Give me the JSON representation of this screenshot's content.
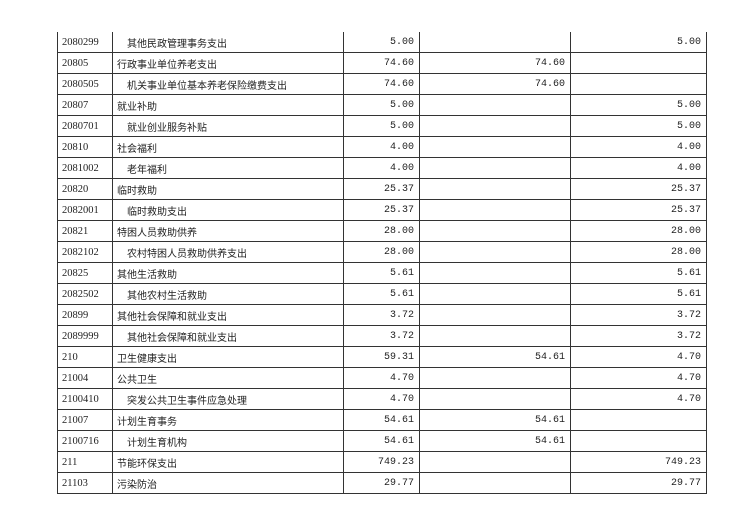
{
  "rows": [
    {
      "code": "2080299",
      "name": "其他民政管理事务支出",
      "indent": true,
      "total": "5.00",
      "basic": "",
      "project": "5.00"
    },
    {
      "code": "20805",
      "name": "行政事业单位养老支出",
      "indent": false,
      "total": "74.60",
      "basic": "74.60",
      "project": ""
    },
    {
      "code": "2080505",
      "name": "机关事业单位基本养老保险缴费支出",
      "indent": true,
      "total": "74.60",
      "basic": "74.60",
      "project": ""
    },
    {
      "code": "20807",
      "name": "就业补助",
      "indent": false,
      "total": "5.00",
      "basic": "",
      "project": "5.00"
    },
    {
      "code": "2080701",
      "name": "就业创业服务补贴",
      "indent": true,
      "total": "5.00",
      "basic": "",
      "project": "5.00"
    },
    {
      "code": "20810",
      "name": "社会福利",
      "indent": false,
      "total": "4.00",
      "basic": "",
      "project": "4.00"
    },
    {
      "code": "2081002",
      "name": "老年福利",
      "indent": true,
      "total": "4.00",
      "basic": "",
      "project": "4.00"
    },
    {
      "code": "20820",
      "name": "临时救助",
      "indent": false,
      "total": "25.37",
      "basic": "",
      "project": "25.37"
    },
    {
      "code": "2082001",
      "name": "临时救助支出",
      "indent": true,
      "total": "25.37",
      "basic": "",
      "project": "25.37"
    },
    {
      "code": "20821",
      "name": "特困人员救助供养",
      "indent": false,
      "total": "28.00",
      "basic": "",
      "project": "28.00"
    },
    {
      "code": "2082102",
      "name": "农村特困人员救助供养支出",
      "indent": true,
      "total": "28.00",
      "basic": "",
      "project": "28.00"
    },
    {
      "code": "20825",
      "name": "其他生活救助",
      "indent": false,
      "total": "5.61",
      "basic": "",
      "project": "5.61"
    },
    {
      "code": "2082502",
      "name": "其他农村生活救助",
      "indent": true,
      "total": "5.61",
      "basic": "",
      "project": "5.61"
    },
    {
      "code": "20899",
      "name": "其他社会保障和就业支出",
      "indent": false,
      "total": "3.72",
      "basic": "",
      "project": "3.72"
    },
    {
      "code": "2089999",
      "name": "其他社会保障和就业支出",
      "indent": true,
      "total": "3.72",
      "basic": "",
      "project": "3.72"
    },
    {
      "code": "210",
      "name": "卫生健康支出",
      "indent": false,
      "total": "59.31",
      "basic": "54.61",
      "project": "4.70"
    },
    {
      "code": "21004",
      "name": "公共卫生",
      "indent": false,
      "total": "4.70",
      "basic": "",
      "project": "4.70"
    },
    {
      "code": "2100410",
      "name": "突发公共卫生事件应急处理",
      "indent": true,
      "total": "4.70",
      "basic": "",
      "project": "4.70"
    },
    {
      "code": "21007",
      "name": "计划生育事务",
      "indent": false,
      "total": "54.61",
      "basic": "54.61",
      "project": ""
    },
    {
      "code": "2100716",
      "name": "计划生育机构",
      "indent": true,
      "total": "54.61",
      "basic": "54.61",
      "project": ""
    },
    {
      "code": "211",
      "name": "节能环保支出",
      "indent": false,
      "total": "749.23",
      "basic": "",
      "project": "749.23"
    },
    {
      "code": "21103",
      "name": "污染防治",
      "indent": false,
      "total": "29.77",
      "basic": "",
      "project": "29.77"
    }
  ]
}
